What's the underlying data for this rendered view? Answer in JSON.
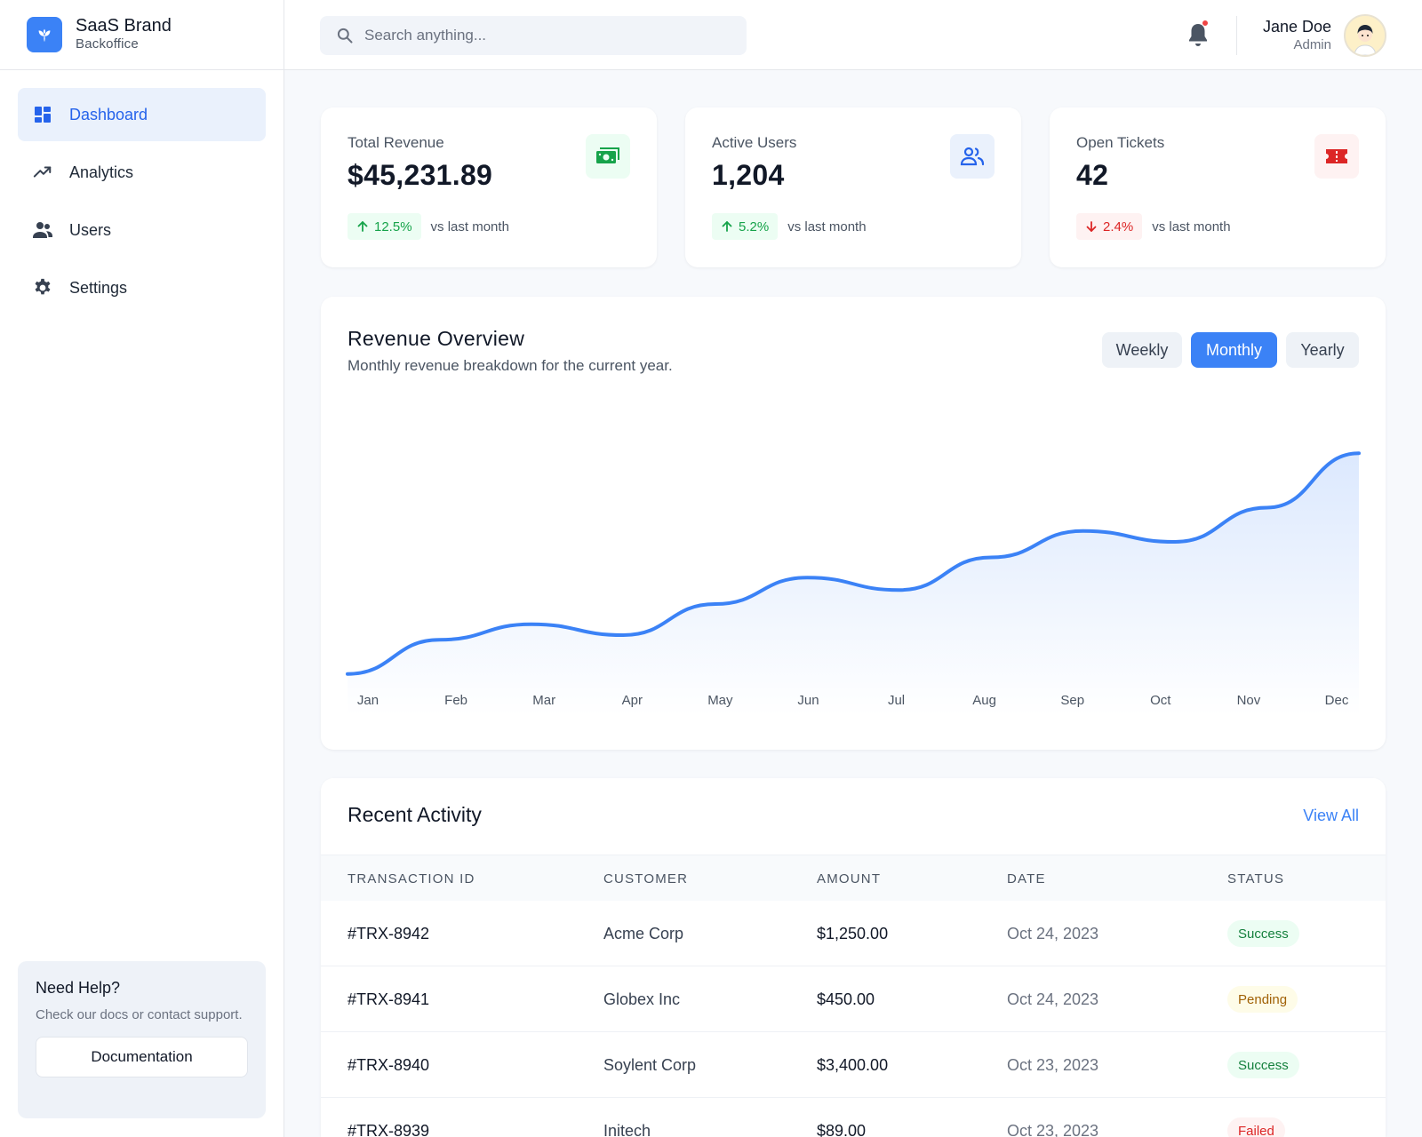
{
  "brand": {
    "name": "SaaS Brand",
    "sub": "Backoffice",
    "icon": "sprout-icon"
  },
  "nav": [
    {
      "label": "Dashboard",
      "icon": "dashboard-icon",
      "active": true
    },
    {
      "label": "Analytics",
      "icon": "trending-up-icon",
      "active": false
    },
    {
      "label": "Users",
      "icon": "users-icon",
      "active": false
    },
    {
      "label": "Settings",
      "icon": "gear-icon",
      "active": false
    }
  ],
  "help": {
    "title": "Need Help?",
    "text": "Check our docs or contact support.",
    "button": "Documentation"
  },
  "search": {
    "placeholder": "Search anything..."
  },
  "user": {
    "name": "Jane Doe",
    "role": "Admin"
  },
  "stats": [
    {
      "title": "Total Revenue",
      "value": "$45,231.89",
      "change": "12.5%",
      "direction": "up",
      "vs": "vs last month",
      "icon": "cash-icon",
      "icon_color": "#16a34a",
      "icon_bg": "#ecfdf3"
    },
    {
      "title": "Active Users",
      "value": "1,204",
      "change": "5.2%",
      "direction": "up",
      "vs": "vs last month",
      "icon": "users-icon",
      "icon_color": "#2563eb",
      "icon_bg": "#eaf1fc"
    },
    {
      "title": "Open Tickets",
      "value": "42",
      "change": "2.4%",
      "direction": "down",
      "vs": "vs last month",
      "icon": "ticket-icon",
      "icon_color": "#dc2626",
      "icon_bg": "#fef2f2"
    }
  ],
  "revenue": {
    "title": "Revenue Overview",
    "subtitle": "Monthly revenue breakdown for the current year.",
    "periods": [
      "Weekly",
      "Monthly",
      "Yearly"
    ],
    "active_period": "Monthly"
  },
  "chart_data": {
    "type": "area",
    "categories": [
      "Jan",
      "Feb",
      "Mar",
      "Apr",
      "May",
      "Jun",
      "Jul",
      "Aug",
      "Sep",
      "Oct",
      "Nov",
      "Dec"
    ],
    "values": [
      3,
      25,
      35,
      28,
      48,
      65,
      57,
      78,
      95,
      88,
      110,
      145
    ],
    "ylim": [
      0,
      160
    ],
    "color": "#3b82f6",
    "grid": false,
    "title": "",
    "xlabel": "",
    "ylabel": ""
  },
  "activity": {
    "title": "Recent Activity",
    "view_all": "View All",
    "columns": [
      "TRANSACTION ID",
      "CUSTOMER",
      "AMOUNT",
      "DATE",
      "STATUS"
    ],
    "rows": [
      {
        "id": "#TRX-8942",
        "customer": "Acme Corp",
        "amount": "$1,250.00",
        "date": "Oct 24, 2023",
        "status": "Success"
      },
      {
        "id": "#TRX-8941",
        "customer": "Globex Inc",
        "amount": "$450.00",
        "date": "Oct 24, 2023",
        "status": "Pending"
      },
      {
        "id": "#TRX-8940",
        "customer": "Soylent Corp",
        "amount": "$3,400.00",
        "date": "Oct 23, 2023",
        "status": "Success"
      },
      {
        "id": "#TRX-8939",
        "customer": "Initech",
        "amount": "$89.00",
        "date": "Oct 23, 2023",
        "status": "Failed"
      }
    ]
  },
  "colors": {
    "accent": "#3b82f6",
    "success": "#16a34a",
    "warning": "#a16207",
    "danger": "#dc2626"
  }
}
